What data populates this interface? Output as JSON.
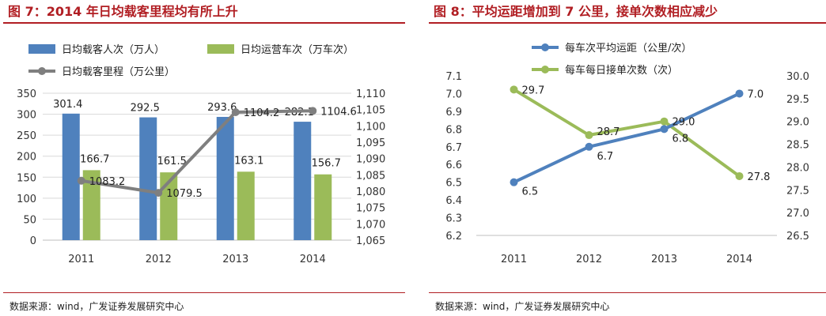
{
  "left": {
    "title": "图 7：2014 年日均载客里程均有所上升",
    "source": "数据来源：wind，广发证券发展研究中心",
    "chart_data": {
      "type": "bar",
      "categories": [
        "2011",
        "2012",
        "2013",
        "2014"
      ],
      "series": [
        {
          "name": "日均载客人次（万人）",
          "kind": "bar",
          "axis": "left",
          "color": "#4F81BD",
          "values": [
            301.4,
            292.5,
            293.6,
            282.1
          ],
          "labels": [
            "301.4",
            "292.5",
            "293.6",
            "282.1"
          ]
        },
        {
          "name": "日均运营车次（万车次）",
          "kind": "bar",
          "axis": "left",
          "color": "#9BBB59",
          "values": [
            166.7,
            161.5,
            163.1,
            156.7
          ],
          "labels": [
            "166.7",
            "161.5",
            "163.1",
            "156.7"
          ]
        },
        {
          "name": "日均载客里程（万公里）",
          "kind": "line",
          "axis": "right",
          "color": "#7F7F7F",
          "values": [
            1083.2,
            1079.5,
            1104.2,
            1104.6
          ],
          "labels": [
            "1083.2",
            "1079.5",
            "1104.2",
            "1104.6"
          ]
        }
      ],
      "y_left": {
        "ylim": [
          0,
          350
        ],
        "ticks": [
          "0",
          "50",
          "100",
          "150",
          "200",
          "250",
          "300",
          "350"
        ]
      },
      "y_right": {
        "ylim": [
          1065,
          1110
        ],
        "ticks": [
          "1,065",
          "1,070",
          "1,075",
          "1,080",
          "1,085",
          "1,090",
          "1,095",
          "1,100",
          "1,105",
          "1,110"
        ]
      },
      "legend_position": "top"
    }
  },
  "right": {
    "title": "图 8：平均运距增加到 7 公里，接单次数相应减少",
    "source": "数据来源：wind，广发证券发展研究中心",
    "chart_data": {
      "type": "line",
      "categories": [
        "2011",
        "2012",
        "2013",
        "2014"
      ],
      "series": [
        {
          "name": "每车次平均运距（公里/次）",
          "axis": "left",
          "color": "#4F81BD",
          "values": [
            6.5,
            6.7,
            6.8,
            7.0
          ],
          "labels": [
            "6.5",
            "6.7",
            "6.8",
            "7.0"
          ]
        },
        {
          "name": "每车每日接单次数（次）",
          "axis": "right",
          "color": "#9BBB59",
          "values": [
            29.7,
            28.7,
            29.0,
            27.8
          ],
          "labels": [
            "29.7",
            "28.7",
            "29.0",
            "27.8"
          ]
        }
      ],
      "y_left": {
        "ylim": [
          6.2,
          7.1
        ],
        "ticks": [
          "6.2",
          "6.3",
          "6.4",
          "6.5",
          "6.6",
          "6.7",
          "6.8",
          "6.9",
          "7.0",
          "7.1"
        ]
      },
      "y_right": {
        "ylim": [
          26.5,
          30.0
        ],
        "ticks": [
          "26.5",
          "27.0",
          "27.5",
          "28.0",
          "28.5",
          "29.0",
          "29.5",
          "30.0"
        ]
      },
      "legend_position": "top"
    }
  }
}
